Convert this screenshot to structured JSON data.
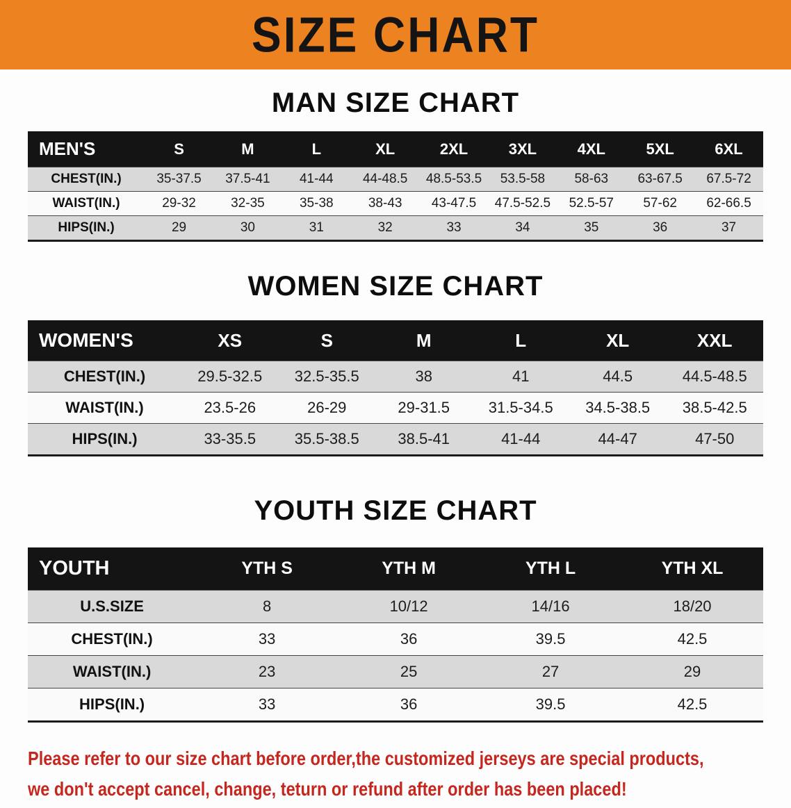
{
  "banner": {
    "title": "SIZE CHART",
    "bg_color": "#EC8220",
    "text_color": "#141414"
  },
  "sections": [
    {
      "id": "men",
      "heading": "MAN SIZE CHART",
      "table": {
        "header": [
          "MEN'S",
          "S",
          "M",
          "L",
          "XL",
          "2XL",
          "3XL",
          "4XL",
          "5XL",
          "6XL"
        ],
        "rows": [
          [
            "CHEST(IN.)",
            "35-37.5",
            "37.5-41",
            "41-44",
            "44-48.5",
            "48.5-53.5",
            "53.5-58",
            "58-63",
            "63-67.5",
            "67.5-72"
          ],
          [
            "WAIST(IN.)",
            "29-32",
            "32-35",
            "35-38",
            "38-43",
            "43-47.5",
            "47.5-52.5",
            "52.5-57",
            "57-62",
            "62-66.5"
          ],
          [
            "HIPS(IN.)",
            "29",
            "30",
            "31",
            "32",
            "33",
            "34",
            "35",
            "36",
            "37"
          ]
        ]
      }
    },
    {
      "id": "women",
      "heading": "WOMEN SIZE CHART",
      "table": {
        "header": [
          "WOMEN'S",
          "XS",
          "S",
          "M",
          "L",
          "XL",
          "XXL"
        ],
        "rows": [
          [
            "CHEST(IN.)",
            "29.5-32.5",
            "32.5-35.5",
            "38",
            "41",
            "44.5",
            "44.5-48.5"
          ],
          [
            "WAIST(IN.)",
            "23.5-26",
            "26-29",
            "29-31.5",
            "31.5-34.5",
            "34.5-38.5",
            "38.5-42.5"
          ],
          [
            "HIPS(IN.)",
            "33-35.5",
            "35.5-38.5",
            "38.5-41",
            "41-44",
            "44-47",
            "47-50"
          ]
        ]
      }
    },
    {
      "id": "youth",
      "heading": "YOUTH SIZE CHART",
      "table": {
        "header": [
          "YOUTH",
          "YTH S",
          "YTH M",
          "YTH L",
          "YTH XL"
        ],
        "rows": [
          [
            "U.S.SIZE",
            "8",
            "10/12",
            "14/16",
            "18/20"
          ],
          [
            "CHEST(IN.)",
            "33",
            "36",
            "39.5",
            "42.5"
          ],
          [
            "WAIST(IN.)",
            "23",
            "25",
            "27",
            "29"
          ],
          [
            "HIPS(IN.)",
            "33",
            "36",
            "39.5",
            "42.5"
          ]
        ]
      }
    }
  ],
  "footer": {
    "lines": [
      "Please refer to our size chart before order,the customized jerseys are special products,",
      "we don't accept cancel, change, teturn or refund after order has been placed!"
    ],
    "text_color": "#C5261D"
  },
  "colors": {
    "header_row_bg": "#141414",
    "stripe_gray": "#D9D9D9",
    "stripe_white": "#FAFAFA"
  }
}
